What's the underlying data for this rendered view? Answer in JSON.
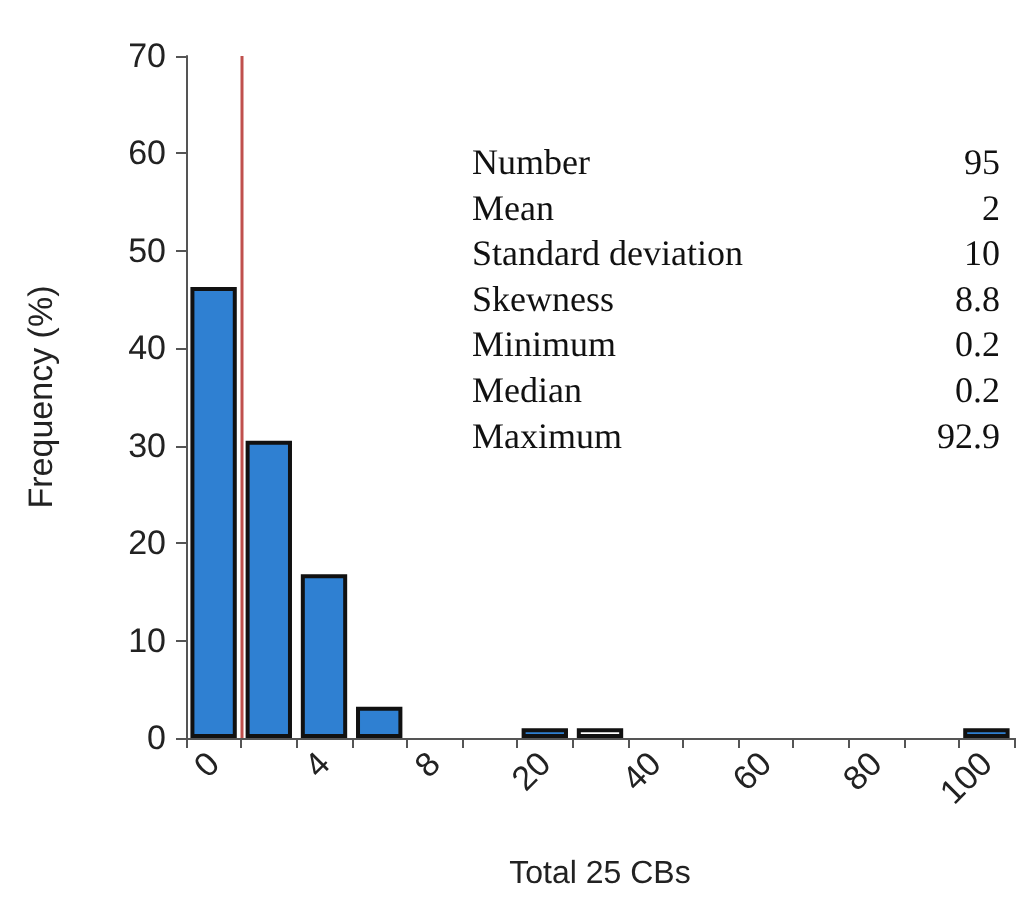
{
  "chart_data": {
    "type": "bar",
    "xlabel": "Total 25 CBs",
    "ylabel": "Frequency (%)",
    "categories": [
      "0",
      null,
      "4",
      null,
      "8",
      null,
      "20",
      null,
      "40",
      null,
      "60",
      null,
      "80",
      null,
      "100"
    ],
    "values": [
      46.3,
      30.5,
      16.8,
      3.2,
      0,
      0,
      1,
      1,
      0,
      0,
      0,
      0,
      0,
      0,
      1
    ],
    "colors": [
      "#2f80d2",
      "#2f80d2",
      "#2f80d2",
      "#2f80d2",
      "#2f80d2",
      "#2f80d2",
      "#2f80d2",
      "#ffffff",
      "#2f80d2",
      "#2f80d2",
      "#2f80d2",
      "#2f80d2",
      "#2f80d2",
      "#2f80d2",
      "#2f80d2"
    ],
    "ylim": [
      0,
      70
    ],
    "yticks": [
      0,
      10,
      20,
      30,
      40,
      50,
      60,
      70
    ],
    "grid": false,
    "ref_lines": [
      {
        "axis": "x",
        "value": "0",
        "color": "#c0504d"
      }
    ],
    "annotations": [
      "Number",
      "95",
      "Mean",
      "2",
      "Standard deviation",
      "10",
      "Skewness",
      "8.8",
      "Minimum",
      "0.2",
      "Median",
      "0.2",
      "Maximum",
      "92.9"
    ]
  }
}
